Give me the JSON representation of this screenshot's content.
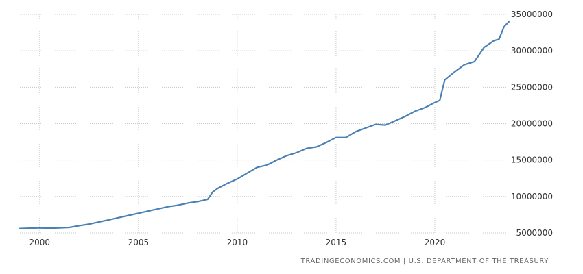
{
  "source_text": "TRADINGECONOMICS.COM | U.S. DEPARTMENT OF THE TREASURY",
  "chart_data": {
    "type": "line",
    "title": "",
    "xlabel": "",
    "ylabel": "",
    "xlim": [
      1999.0,
      2023.75
    ],
    "ylim": [
      5000000,
      35000000
    ],
    "x_ticks": [
      2000,
      2005,
      2010,
      2015,
      2020
    ],
    "x_tick_labels": [
      "2000",
      "2005",
      "2010",
      "2015",
      "2020"
    ],
    "y_ticks": [
      5000000,
      10000000,
      15000000,
      20000000,
      25000000,
      30000000,
      35000000
    ],
    "y_tick_labels": [
      "5000000",
      "10000000",
      "15000000",
      "20000000",
      "25000000",
      "30000000",
      "35000000"
    ],
    "grid": true,
    "line_color": "#4a80b3",
    "series": [
      {
        "x": [
          1999.0,
          1999.5,
          2000.0,
          2000.5,
          2001.0,
          2001.5,
          2002.0,
          2002.5,
          2003.0,
          2003.5,
          2004.0,
          2004.5,
          2005.0,
          2005.5,
          2006.0,
          2006.5,
          2007.0,
          2007.5,
          2008.0,
          2008.5,
          2008.75,
          2009.0,
          2009.5,
          2010.0,
          2010.5,
          2011.0,
          2011.5,
          2012.0,
          2012.5,
          2013.0,
          2013.5,
          2014.0,
          2014.5,
          2015.0,
          2015.5,
          2016.0,
          2016.5,
          2017.0,
          2017.5,
          2018.0,
          2018.5,
          2019.0,
          2019.5,
          2020.0,
          2020.25,
          2020.5,
          2021.0,
          2021.5,
          2022.0,
          2022.5,
          2023.0,
          2023.25,
          2023.5,
          2023.75
        ],
        "values": [
          5600000,
          5650000,
          5700000,
          5650000,
          5700000,
          5750000,
          6000000,
          6200000,
          6500000,
          6800000,
          7100000,
          7400000,
          7700000,
          8000000,
          8300000,
          8600000,
          8800000,
          9100000,
          9300000,
          9600000,
          10600000,
          11100000,
          11800000,
          12400000,
          13200000,
          14000000,
          14300000,
          15000000,
          15600000,
          16000000,
          16600000,
          16800000,
          17400000,
          18100000,
          18100000,
          18900000,
          19400000,
          19900000,
          19800000,
          20400000,
          21000000,
          21700000,
          22200000,
          22900000,
          23200000,
          26000000,
          27100000,
          28100000,
          28500000,
          30500000,
          31400000,
          31600000,
          33300000,
          34000000
        ]
      }
    ]
  }
}
